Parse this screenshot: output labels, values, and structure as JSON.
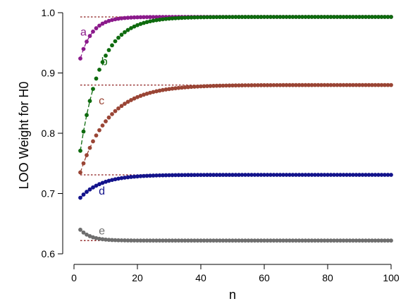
{
  "chart_data": {
    "type": "scatter",
    "xlabel": "n",
    "ylabel": "LOO Weight for H0",
    "xlim": [
      0,
      100
    ],
    "ylim": [
      0.6,
      1.0
    ],
    "xticks": [
      0,
      20,
      40,
      60,
      80,
      100
    ],
    "yticks": [
      0.6,
      0.7,
      0.8,
      0.9,
      1.0
    ],
    "grid": false,
    "legend": "none",
    "series": [
      {
        "name": "a",
        "color": "#8B1A8B",
        "asymptote": 0.993,
        "start_value": 0.924,
        "decay_rate": 0.26
      },
      {
        "name": "b",
        "color": "#0E6B0E",
        "asymptote": 0.993,
        "start_value": 0.771,
        "decay_rate": 0.155
      },
      {
        "name": "c",
        "color": "#9A4535",
        "asymptote": 0.88,
        "start_value": 0.735,
        "decay_rate": 0.11
      },
      {
        "name": "d",
        "color": "#14148C",
        "asymptote": 0.731,
        "start_value": 0.693,
        "decay_rate": 0.15
      },
      {
        "name": "e",
        "color": "#6E6E6E",
        "asymptote": 0.622,
        "start_value": 0.64,
        "decay_rate": 0.3
      }
    ],
    "reference_lines": [
      0.993,
      0.88,
      0.731,
      0.622
    ],
    "reference_line_color": "#8B1A1A"
  }
}
